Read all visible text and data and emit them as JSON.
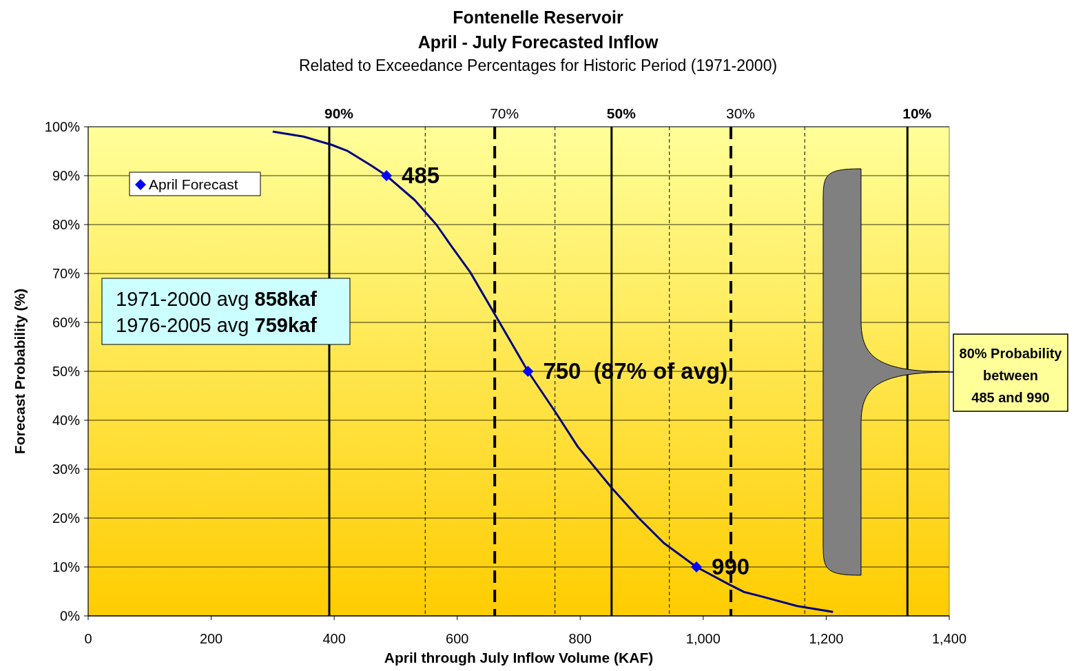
{
  "chart_data": {
    "type": "line",
    "title": "Fontenelle Reservoir",
    "subtitle": "April - July Forecasted Inflow",
    "xlabel": "April through July Inflow Volume (KAF)",
    "ylabel": "Forecast Probability (%)",
    "series": [
      {
        "color": "#000080",
        "marker": "none",
        "x": [
          300,
          350,
          396,
          421,
          461,
          485,
          531,
          566,
          591,
          621,
          661,
          715,
          759,
          796,
          851,
          896,
          936,
          989,
          1041,
          1066,
          1091,
          1153,
          1211
        ],
        "values": [
          99,
          98,
          96.3,
          95.1,
          92,
          90,
          85,
          80,
          75.5,
          70.3,
          61.7,
          50,
          41.8,
          34.6,
          26.2,
          19.9,
          14.9,
          10,
          6.5,
          4.9,
          4.1,
          2,
          0.8
        ]
      },
      {
        "type": "scatter",
        "name": "April Forecast",
        "color": "#0000ff",
        "marker": "diamond",
        "x": [
          485,
          715,
          989
        ],
        "values": [
          90,
          50,
          10
        ]
      }
    ],
    "xlim": [
      0,
      1400
    ],
    "xticks": [
      0,
      200,
      400,
      600,
      800,
      {
        "value": 1000,
        "label": "1,000"
      },
      {
        "value": 1200,
        "label": "1,200"
      },
      {
        "value": 1400,
        "label": "1,400"
      }
    ],
    "ylim": [
      0,
      100
    ],
    "yticks": [
      {
        "value": 0,
        "label": "0%"
      },
      {
        "value": 10,
        "label": "10%"
      },
      {
        "value": 20,
        "label": "20%"
      },
      {
        "value": 30,
        "label": "30%"
      },
      {
        "value": 40,
        "label": "40%"
      },
      {
        "value": 50,
        "label": "50%"
      },
      {
        "value": 60,
        "label": "60%"
      },
      {
        "value": 70,
        "label": "70%"
      },
      {
        "value": 80,
        "label": "80%"
      },
      {
        "value": 90,
        "label": "90%"
      },
      {
        "value": 100,
        "label": "100%"
      }
    ],
    "grid": "y",
    "legend": "top left",
    "ref_lines": [
      {
        "axis": "x",
        "value": 392,
        "line_style": "solid",
        "color": "#000000"
      },
      {
        "axis": "x",
        "value": 548,
        "line_style": "dotted",
        "color": "#000000"
      },
      {
        "axis": "x",
        "value": 661,
        "line_style": "dashed",
        "color": "#000000"
      },
      {
        "axis": "x",
        "value": 759,
        "line_style": "dotted",
        "color": "#000000"
      },
      {
        "axis": "x",
        "value": 851,
        "line_style": "solid",
        "color": "#000000"
      },
      {
        "axis": "x",
        "value": 945,
        "line_style": "dotted",
        "color": "#000000"
      },
      {
        "axis": "x",
        "value": 1045,
        "line_style": "dashed",
        "color": "#000000"
      },
      {
        "axis": "x",
        "value": 1165,
        "line_style": "dotted",
        "color": "#000000"
      },
      {
        "axis": "x",
        "value": 1332,
        "line_style": "solid",
        "color": "#000000"
      }
    ],
    "annotations": [
      "Related to Exceedance Percentages for Historic Period (1971-2000)",
      "1971-2000 avg 858kaf",
      "1976-2005 avg 759kaf",
      {
        "text": "90%",
        "x": 392,
        "y": 100
      },
      {
        "text": "70%",
        "x": 661,
        "y": 100
      },
      {
        "text": "50%",
        "x": 851,
        "y": 100
      },
      {
        "text": "30%",
        "x": 1045,
        "y": 100
      },
      {
        "text": "10%",
        "x": 1332,
        "y": 100
      },
      {
        "text": "485",
        "x": 485,
        "y": 90
      },
      {
        "text": "750  (87% of avg)",
        "x": 715,
        "y": 50
      },
      {
        "text": "990",
        "x": 989,
        "y": 10
      },
      "80% Probability between 485 and 990"
    ]
  }
}
